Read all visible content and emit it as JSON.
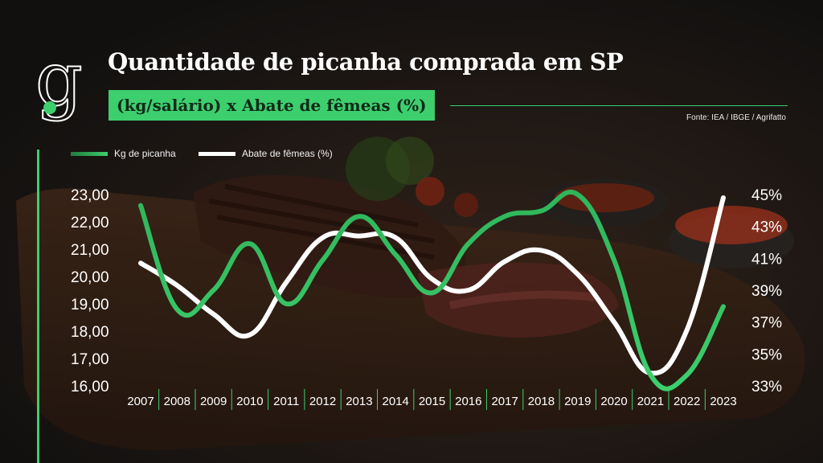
{
  "header": {
    "title": "Quantidade de picanha comprada em SP",
    "subtitle": "(kg/salário) x Abate de fêmeas (%)",
    "source": "Fonte: IEA / IBGE / Agrifatto"
  },
  "brand": {
    "logo_letter": "g",
    "accent": "#3dcf6e"
  },
  "chart_data": {
    "type": "line",
    "title": "Quantidade de picanha comprada em SP",
    "subtitle": "(kg/salário) x Abate de fêmeas (%)",
    "legend_position": "top-left",
    "grid": false,
    "x": [
      "2007",
      "2008",
      "2009",
      "2010",
      "2011",
      "2012",
      "2013",
      "2014",
      "2015",
      "2016",
      "2017",
      "2018",
      "2019",
      "2020",
      "2021",
      "2022",
      "2023"
    ],
    "y_left": {
      "ylim": [
        16,
        23
      ],
      "ticks": [
        "16,00",
        "17,00",
        "18,00",
        "19,00",
        "20,00",
        "21,00",
        "22,00",
        "23,00"
      ]
    },
    "y_right": {
      "ylim": [
        33,
        45
      ],
      "ticks": [
        "33%",
        "35%",
        "37%",
        "39%",
        "41%",
        "43%",
        "45%"
      ]
    },
    "series": [
      {
        "name": "Kg de picanha",
        "axis": "left",
        "color": "#3dcf6e",
        "values": [
          22.6,
          18.8,
          19.5,
          21.2,
          19.0,
          20.6,
          22.2,
          20.8,
          19.4,
          21.2,
          22.2,
          22.4,
          23.0,
          20.6,
          16.4,
          16.4,
          18.9
        ]
      },
      {
        "name": "Abate de fêmeas (%)",
        "axis": "right",
        "color": "#ffffff",
        "values": [
          40.7,
          39.3,
          37.5,
          36.2,
          39.5,
          42.3,
          42.4,
          42.3,
          39.7,
          39.0,
          40.8,
          41.5,
          40.0,
          37.0,
          33.8,
          36.5,
          44.8
        ]
      }
    ]
  }
}
